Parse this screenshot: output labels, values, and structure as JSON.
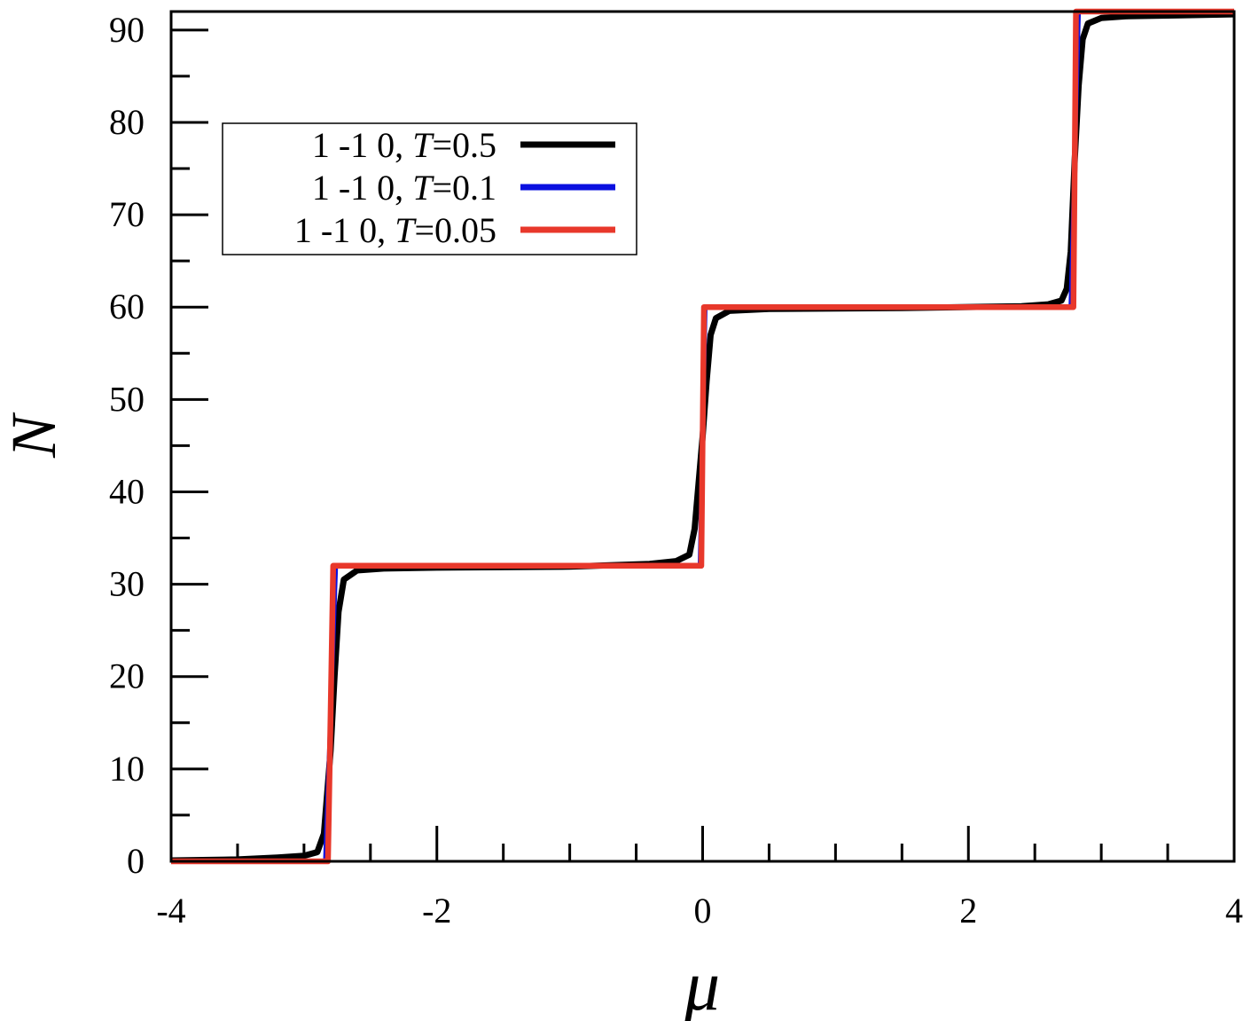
{
  "chart_data": {
    "type": "line",
    "title": "",
    "xlabel": "μ",
    "ylabel": "N",
    "xlim": [
      -4,
      4
    ],
    "ylim": [
      0,
      92
    ],
    "x_ticks": [
      "-4",
      "-2",
      "0",
      "2",
      "4"
    ],
    "y_ticks": [
      "0",
      "10",
      "20",
      "30",
      "40",
      "50",
      "60",
      "70",
      "80",
      "90"
    ],
    "x_tick_values": [
      -4,
      -2,
      0,
      2,
      4
    ],
    "y_tick_values": [
      0,
      10,
      20,
      30,
      40,
      50,
      60,
      70,
      80,
      90
    ],
    "x_minor_step": 0.5,
    "y_minor_step": 5,
    "grid": false,
    "legend_position": "upper-left",
    "series": [
      {
        "name": "1 -1 0, T=0.5",
        "label_prefix": "1 -1 0, ",
        "label_var": "T",
        "label_value": "=0.5",
        "color": "#000000",
        "temperature": 0.5,
        "x": [
          -4.0,
          -3.5,
          -3.2,
          -3.0,
          -2.9,
          -2.85,
          -2.8,
          -2.77,
          -2.74,
          -2.7,
          -2.6,
          -2.4,
          -2.0,
          -1.0,
          -0.4,
          -0.2,
          -0.1,
          -0.06,
          -0.03,
          0.0,
          0.03,
          0.06,
          0.1,
          0.2,
          0.5,
          1.5,
          2.4,
          2.6,
          2.7,
          2.74,
          2.77,
          2.8,
          2.83,
          2.86,
          2.9,
          3.0,
          3.2,
          3.6,
          4.0
        ],
        "y": [
          0.1,
          0.2,
          0.4,
          0.6,
          1.0,
          3.0,
          12.0,
          20.0,
          27.0,
          30.5,
          31.5,
          31.7,
          31.8,
          31.9,
          32.2,
          32.5,
          33.2,
          36.0,
          41.0,
          46.0,
          52.0,
          57.0,
          58.8,
          59.6,
          59.8,
          59.9,
          60.1,
          60.3,
          60.7,
          62.0,
          66.0,
          76.0,
          84.0,
          89.0,
          90.7,
          91.3,
          91.5,
          91.6,
          91.7
        ]
      },
      {
        "name": "1 -1 0, T=0.1",
        "label_prefix": "1 -1 0, ",
        "label_var": "T",
        "label_value": "=0.1",
        "color": "#0a10e0",
        "temperature": 0.1,
        "x": [
          -4.0,
          -2.84,
          -2.8,
          -2.76,
          -0.02,
          0.0,
          0.02,
          2.77,
          2.8,
          2.83,
          4.0
        ],
        "y": [
          0.0,
          0.0,
          16.0,
          32.0,
          32.0,
          46.0,
          60.0,
          60.0,
          76.0,
          92.0,
          92.0
        ]
      },
      {
        "name": "1 -1 0, T=0.05",
        "label_prefix": "1 -1 0, ",
        "label_var": "T",
        "label_value": "=0.05",
        "color": "#e8382b",
        "temperature": 0.05,
        "x": [
          -4.0,
          -2.82,
          -2.8,
          -2.78,
          -0.01,
          0.0,
          0.01,
          2.79,
          2.8,
          2.81,
          4.0
        ],
        "y": [
          0.0,
          0.0,
          16.0,
          32.0,
          32.0,
          46.0,
          60.0,
          60.0,
          76.0,
          92.0,
          92.0
        ]
      }
    ]
  }
}
